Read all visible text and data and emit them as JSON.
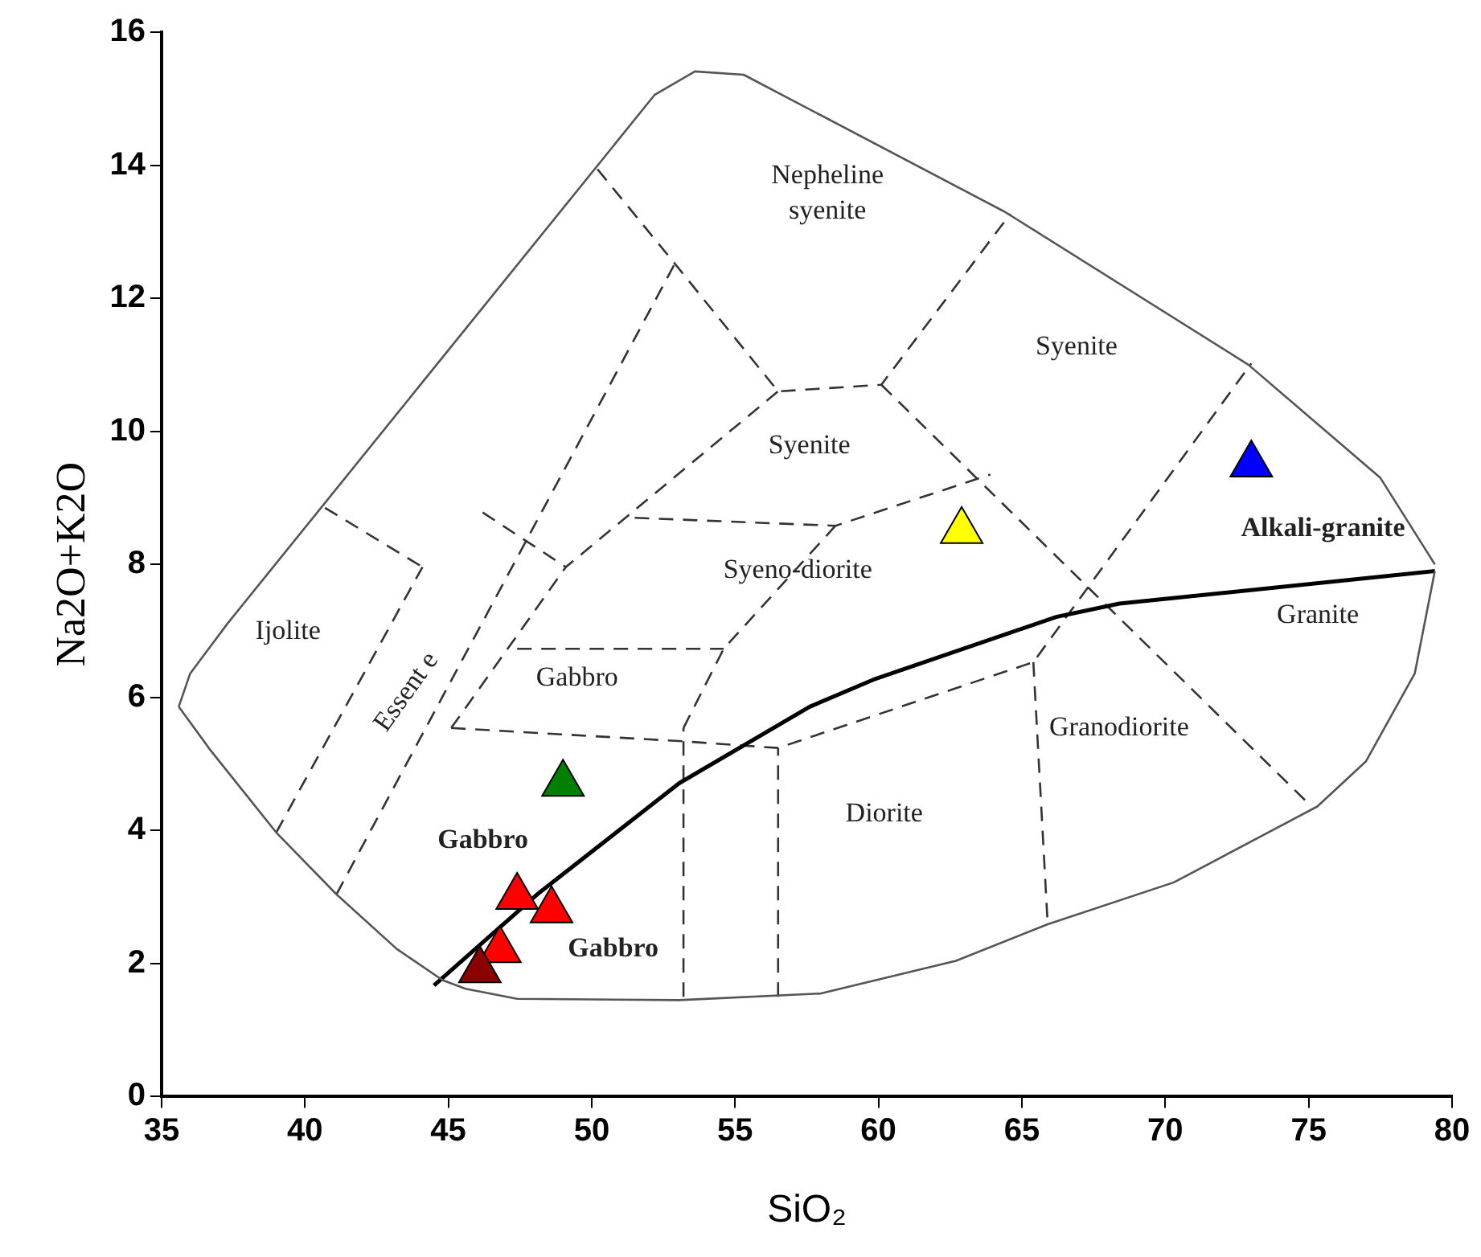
{
  "chart_data": {
    "type": "scatter",
    "xlabel": "SiO₂",
    "ylabel": "Na2O+K2O",
    "xlim": [
      35,
      80
    ],
    "xticks": [
      35,
      40,
      45,
      50,
      55,
      60,
      65,
      70,
      75,
      80
    ],
    "ylim": [
      0,
      16
    ],
    "yticks": [
      0,
      2,
      4,
      6,
      8,
      10,
      12,
      14,
      16
    ],
    "grid": false,
    "legend": false,
    "series": [
      {
        "type": "line",
        "color": "#555555",
        "line_style": "solid",
        "marker": "none",
        "x": [
          35.6,
          36.0,
          37.3,
          52.2,
          53.6,
          55.3,
          64.4,
          72.9,
          77.5,
          79.4
        ],
        "values": [
          5.86,
          6.36,
          7.11,
          15.06,
          15.41,
          15.36,
          13.3,
          11.0,
          9.3,
          8.0
        ]
      },
      {
        "type": "line",
        "color": "#555555",
        "line_style": "solid",
        "marker": "none",
        "x": [
          35.6,
          36.7,
          39.0,
          41.1,
          43.2,
          44.8,
          45.6,
          47.4,
          53.05,
          58.0,
          62.7,
          65.9,
          70.3,
          75.3,
          77.0,
          78.7,
          79.4
        ],
        "values": [
          5.86,
          5.21,
          3.97,
          3.04,
          2.22,
          1.75,
          1.62,
          1.47,
          1.45,
          1.55,
          2.04,
          2.59,
          3.22,
          4.36,
          5.04,
          6.36,
          7.9
        ]
      },
      {
        "type": "line",
        "color": "#000000",
        "line_style": "solid",
        "marker": "none",
        "x": [
          44.5,
          48.1,
          53.05,
          57.6,
          59.9,
          66.2,
          68.4,
          79.4
        ],
        "values": [
          1.67,
          3.04,
          4.71,
          5.86,
          6.28,
          7.21,
          7.41,
          7.9
        ]
      },
      {
        "type": "line",
        "color": "#333333",
        "line_style": "dashed",
        "marker": "none",
        "x": [
          40.7,
          44.1
        ],
        "values": [
          8.85,
          7.96
        ]
      },
      {
        "type": "line",
        "color": "#333333",
        "line_style": "dashed",
        "marker": "none",
        "x": [
          39.0,
          44.1
        ],
        "values": [
          3.97,
          7.96
        ]
      },
      {
        "type": "line",
        "color": "#333333",
        "line_style": "dashed",
        "marker": "none",
        "x": [
          41.1,
          52.9
        ],
        "values": [
          3.04,
          12.52
        ]
      },
      {
        "type": "line",
        "color": "#333333",
        "line_style": "dashed",
        "marker": "none",
        "x": [
          50.2,
          52.9,
          56.5,
          60.1,
          64.6
        ],
        "values": [
          13.94,
          12.52,
          10.6,
          10.7,
          13.27
        ]
      },
      {
        "type": "line",
        "color": "#333333",
        "line_style": "dashed",
        "marker": "none",
        "x": [
          45.1,
          49.1,
          56.5
        ],
        "values": [
          5.54,
          7.96,
          10.6
        ]
      },
      {
        "type": "line",
        "color": "#333333",
        "line_style": "dashed",
        "marker": "none",
        "x": [
          45.1,
          53.2,
          56.5,
          65.4,
          73.0
        ],
        "values": [
          5.54,
          5.34,
          5.24,
          6.53,
          11.02
        ]
      },
      {
        "type": "line",
        "color": "#333333",
        "line_style": "dashed",
        "marker": "none",
        "x": [
          46.2,
          49.1
        ],
        "values": [
          8.78,
          7.96
        ]
      },
      {
        "type": "line",
        "color": "#333333",
        "line_style": "dashed",
        "marker": "none",
        "x": [
          51.5,
          58.5,
          63.9
        ],
        "values": [
          8.7,
          8.58,
          9.35
        ]
      },
      {
        "type": "line",
        "color": "#333333",
        "line_style": "dashed",
        "marker": "none",
        "x": [
          47.4,
          54.6
        ],
        "values": [
          6.73,
          6.73
        ]
      },
      {
        "type": "line",
        "color": "#333333",
        "line_style": "dashed",
        "marker": "none",
        "x": [
          53.2,
          54.6,
          58.5
        ],
        "values": [
          5.54,
          6.73,
          8.58
        ]
      },
      {
        "type": "line",
        "color": "#333333",
        "line_style": "dashed",
        "marker": "none",
        "x": [
          53.2,
          53.2
        ],
        "values": [
          1.5,
          5.54
        ]
      },
      {
        "type": "line",
        "color": "#333333",
        "line_style": "dashed",
        "marker": "none",
        "x": [
          56.5,
          56.5
        ],
        "values": [
          1.5,
          5.24
        ]
      },
      {
        "type": "line",
        "color": "#333333",
        "line_style": "dashed",
        "marker": "none",
        "x": [
          65.4,
          65.9
        ],
        "values": [
          6.53,
          2.59
        ]
      },
      {
        "type": "line",
        "color": "#333333",
        "line_style": "dashed",
        "marker": "none",
        "x": [
          60.1,
          75.1
        ],
        "values": [
          10.7,
          4.36
        ]
      },
      {
        "marker": "triangle",
        "x": [
          73.0,
          62.9,
          49.0,
          47.4,
          48.6,
          46.8,
          46.1
        ],
        "values": [
          9.5,
          8.5,
          4.7,
          3.0,
          2.8,
          2.2,
          1.9
        ],
        "colors": [
          "#0000ff",
          "#ffff00",
          "#008000",
          "#ff0000",
          "#ff0000",
          "#ff0000",
          "#8b0000"
        ]
      }
    ],
    "annotations": [
      "Nepheline\nsyenite",
      "Syenite",
      "Syenite",
      "Syeno-diorite",
      "Alkali-granite",
      "Granite",
      "Gabbro",
      "Granodiorite",
      "Diorite",
      "Ijolite",
      "Essent e",
      "Gabbro",
      "Gabbro"
    ]
  }
}
